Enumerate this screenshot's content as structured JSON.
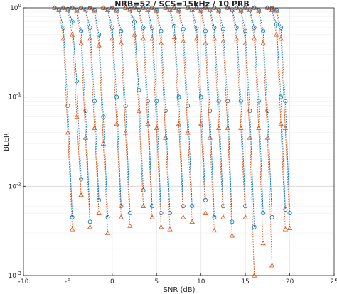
{
  "chart_data": {
    "type": "line",
    "title": "NRB=52 / SCS=15kHz / 10 PRB",
    "xlabel": "SNR (dB)",
    "ylabel": "BLER",
    "xlim": [
      -10,
      25
    ],
    "ylim": [
      0.001,
      1
    ],
    "yscale": "log",
    "grid": true,
    "x_ticks": [
      "-10",
      "-5",
      "0",
      "5",
      "10",
      "15",
      "20",
      "25"
    ],
    "y_ticks": [
      {
        "base": "10",
        "exp": "0"
      },
      {
        "base": "10",
        "exp": "-1"
      },
      {
        "base": "10",
        "exp": "-2"
      },
      {
        "base": "10",
        "exp": "-3"
      }
    ],
    "colors": {
      "series_a": "#0072BD",
      "series_b": "#D95319",
      "grid": "#e0e0e0"
    },
    "series": [
      {
        "marker": "circle",
        "color": "#0072BD",
        "curves": [
          {
            "x": [
              -6.5,
              -6.0,
              -5.5,
              -5.0,
              -4.5
            ],
            "y": [
              1.0,
              0.96,
              0.6,
              0.08,
              0.0045
            ]
          },
          {
            "x": [
              -5.5,
              -5.0,
              -4.5,
              -4.0,
              -3.5
            ],
            "y": [
              1.0,
              0.97,
              0.7,
              0.15,
              0.012
            ]
          },
          {
            "x": [
              -4.5,
              -4.0,
              -3.5,
              -3.0,
              -2.5
            ],
            "y": [
              1.0,
              0.95,
              0.55,
              0.07,
              0.004
            ]
          },
          {
            "x": [
              -3.5,
              -3.0,
              -2.5,
              -2.0,
              -1.5
            ],
            "y": [
              1.0,
              0.96,
              0.6,
              0.09,
              0.007
            ]
          },
          {
            "x": [
              -2.5,
              -2.0,
              -1.5,
              -1.0,
              -0.5
            ],
            "y": [
              1.0,
              0.95,
              0.5,
              0.06,
              0.0045
            ]
          },
          {
            "x": [
              -1.0,
              -0.5,
              0.0,
              0.5,
              1.0
            ],
            "y": [
              1.0,
              0.96,
              0.6,
              0.1,
              0.006
            ]
          },
          {
            "x": [
              0.0,
              0.5,
              1.0,
              1.5,
              2.0
            ],
            "y": [
              1.0,
              0.95,
              0.55,
              0.08,
              0.005
            ]
          },
          {
            "x": [
              1.5,
              2.0,
              2.5,
              3.0,
              3.5
            ],
            "y": [
              1.0,
              0.97,
              0.7,
              0.12,
              0.009
            ]
          },
          {
            "x": [
              2.5,
              3.0,
              3.5,
              4.0,
              4.5
            ],
            "y": [
              1.0,
              0.95,
              0.6,
              0.09,
              0.006
            ]
          },
          {
            "x": [
              3.5,
              4.0,
              4.5,
              5.0,
              5.5
            ],
            "y": [
              1.0,
              0.96,
              0.6,
              0.09,
              0.005
            ]
          },
          {
            "x": [
              4.5,
              5.0,
              5.5,
              6.0,
              6.5
            ],
            "y": [
              1.0,
              0.95,
              0.55,
              0.07,
              0.005
            ]
          },
          {
            "x": [
              6.0,
              6.5,
              7.0,
              7.5,
              8.0
            ],
            "y": [
              1.0,
              0.96,
              0.62,
              0.1,
              0.006
            ]
          },
          {
            "x": [
              7.0,
              7.5,
              8.0,
              8.5,
              9.0
            ],
            "y": [
              1.0,
              0.95,
              0.58,
              0.08,
              0.006
            ]
          },
          {
            "x": [
              8.5,
              9.0,
              9.5,
              10.0,
              10.5
            ],
            "y": [
              1.0,
              0.96,
              0.6,
              0.1,
              0.007
            ]
          },
          {
            "x": [
              9.5,
              10.0,
              10.5,
              11.0,
              11.5
            ],
            "y": [
              1.0,
              0.95,
              0.55,
              0.07,
              0.0045
            ]
          },
          {
            "x": [
              10.5,
              11.0,
              11.5,
              12.0,
              12.5
            ],
            "y": [
              1.0,
              0.96,
              0.6,
              0.09,
              0.006
            ]
          },
          {
            "x": [
              11.5,
              12.0,
              12.5,
              13.0,
              13.5
            ],
            "y": [
              1.0,
              0.95,
              0.58,
              0.09,
              0.004
            ]
          },
          {
            "x": [
              13.0,
              13.5,
              14.0,
              14.5,
              15.0
            ],
            "y": [
              1.0,
              0.96,
              0.6,
              0.09,
              0.006
            ]
          },
          {
            "x": [
              14.0,
              14.5,
              15.0,
              15.5,
              16.0
            ],
            "y": [
              1.0,
              0.95,
              0.55,
              0.07,
              0.0035
            ]
          },
          {
            "x": [
              15.0,
              15.5,
              16.0,
              16.5,
              17.0
            ],
            "y": [
              1.0,
              0.96,
              0.6,
              0.09,
              0.005
            ]
          },
          {
            "x": [
              16.0,
              16.5,
              17.0,
              17.5,
              18.0
            ],
            "y": [
              1.0,
              0.95,
              0.55,
              0.07,
              0.0045
            ]
          },
          {
            "x": [
              17.5,
              18.0,
              18.5,
              19.0,
              19.5
            ],
            "y": [
              1.0,
              0.96,
              0.65,
              0.1,
              0.0055
            ]
          },
          {
            "x": [
              18.0,
              18.5,
              19.0,
              19.5,
              20.0
            ],
            "y": [
              1.0,
              0.95,
              0.6,
              0.09,
              0.005
            ]
          }
        ]
      },
      {
        "marker": "triangle",
        "color": "#D95319",
        "curves": [
          {
            "x": [
              -6.5,
              -6.0,
              -5.5,
              -5.0,
              -4.5
            ],
            "y": [
              1.0,
              0.94,
              0.45,
              0.04,
              0.0033
            ]
          },
          {
            "x": [
              -5.5,
              -5.0,
              -4.5,
              -4.0,
              -3.5
            ],
            "y": [
              1.0,
              0.95,
              0.5,
              0.06,
              0.008
            ]
          },
          {
            "x": [
              -4.5,
              -4.0,
              -3.5,
              -3.0,
              -2.5
            ],
            "y": [
              1.0,
              0.93,
              0.4,
              0.035,
              0.0035
            ]
          },
          {
            "x": [
              -3.5,
              -3.0,
              -2.5,
              -2.0,
              -1.5
            ],
            "y": [
              1.0,
              0.95,
              0.45,
              0.045,
              0.005
            ]
          },
          {
            "x": [
              -2.5,
              -2.0,
              -1.5,
              -1.0,
              -0.5
            ],
            "y": [
              1.0,
              0.93,
              0.38,
              0.03,
              0.003
            ]
          },
          {
            "x": [
              -1.0,
              -0.5,
              0.0,
              0.5,
              1.0
            ],
            "y": [
              1.0,
              0.94,
              0.45,
              0.05,
              0.0045
            ]
          },
          {
            "x": [
              0.0,
              0.5,
              1.0,
              1.5,
              2.0
            ],
            "y": [
              1.0,
              0.93,
              0.4,
              0.04,
              0.0036
            ]
          },
          {
            "x": [
              1.5,
              2.0,
              2.5,
              3.0,
              3.5
            ],
            "y": [
              1.0,
              0.95,
              0.5,
              0.07,
              0.006
            ]
          },
          {
            "x": [
              2.5,
              3.0,
              3.5,
              4.0,
              4.5
            ],
            "y": [
              1.0,
              0.94,
              0.45,
              0.05,
              0.0045
            ]
          },
          {
            "x": [
              3.5,
              4.0,
              4.5,
              5.0,
              5.5
            ],
            "y": [
              1.0,
              0.94,
              0.45,
              0.045,
              0.0035
            ]
          },
          {
            "x": [
              4.5,
              5.0,
              5.5,
              6.0,
              6.5
            ],
            "y": [
              1.0,
              0.93,
              0.4,
              0.035,
              0.0033
            ]
          },
          {
            "x": [
              6.0,
              6.5,
              7.0,
              7.5,
              8.0
            ],
            "y": [
              1.0,
              0.94,
              0.47,
              0.05,
              0.0045
            ]
          },
          {
            "x": [
              7.0,
              7.5,
              8.0,
              8.5,
              9.0
            ],
            "y": [
              1.0,
              0.93,
              0.42,
              0.04,
              0.004
            ]
          },
          {
            "x": [
              8.5,
              9.0,
              9.5,
              10.0,
              10.5
            ],
            "y": [
              1.0,
              0.94,
              0.45,
              0.05,
              0.005
            ]
          },
          {
            "x": [
              9.5,
              10.0,
              10.5,
              11.0,
              11.5
            ],
            "y": [
              1.0,
              0.93,
              0.4,
              0.035,
              0.0032
            ]
          },
          {
            "x": [
              10.5,
              11.0,
              11.5,
              12.0,
              12.5
            ],
            "y": [
              1.0,
              0.94,
              0.45,
              0.045,
              0.0045
            ]
          },
          {
            "x": [
              11.5,
              12.0,
              12.5,
              13.0,
              13.5
            ],
            "y": [
              1.0,
              0.93,
              0.42,
              0.045,
              0.0028
            ]
          },
          {
            "x": [
              13.0,
              13.5,
              14.0,
              14.5,
              15.0
            ],
            "y": [
              1.0,
              0.94,
              0.45,
              0.045,
              0.0045
            ]
          },
          {
            "x": [
              14.0,
              14.5,
              15.0,
              15.5,
              16.0
            ],
            "y": [
              1.0,
              0.93,
              0.4,
              0.035,
              0.001
            ]
          },
          {
            "x": [
              15.0,
              15.5,
              16.0,
              16.5,
              17.0
            ],
            "y": [
              1.0,
              0.94,
              0.45,
              0.045,
              0.0023
            ]
          },
          {
            "x": [
              16.0,
              16.5,
              17.0,
              17.5,
              18.0
            ],
            "y": [
              1.0,
              0.93,
              0.4,
              0.035,
              0.0013
            ]
          },
          {
            "x": [
              17.5,
              18.0,
              18.5,
              19.0,
              19.5
            ],
            "y": [
              1.0,
              0.94,
              0.5,
              0.05,
              0.0033
            ]
          },
          {
            "x": [
              18.0,
              18.5,
              19.0,
              19.5,
              20.0
            ],
            "y": [
              1.0,
              0.93,
              0.45,
              0.045,
              0.0034
            ]
          }
        ]
      }
    ]
  }
}
